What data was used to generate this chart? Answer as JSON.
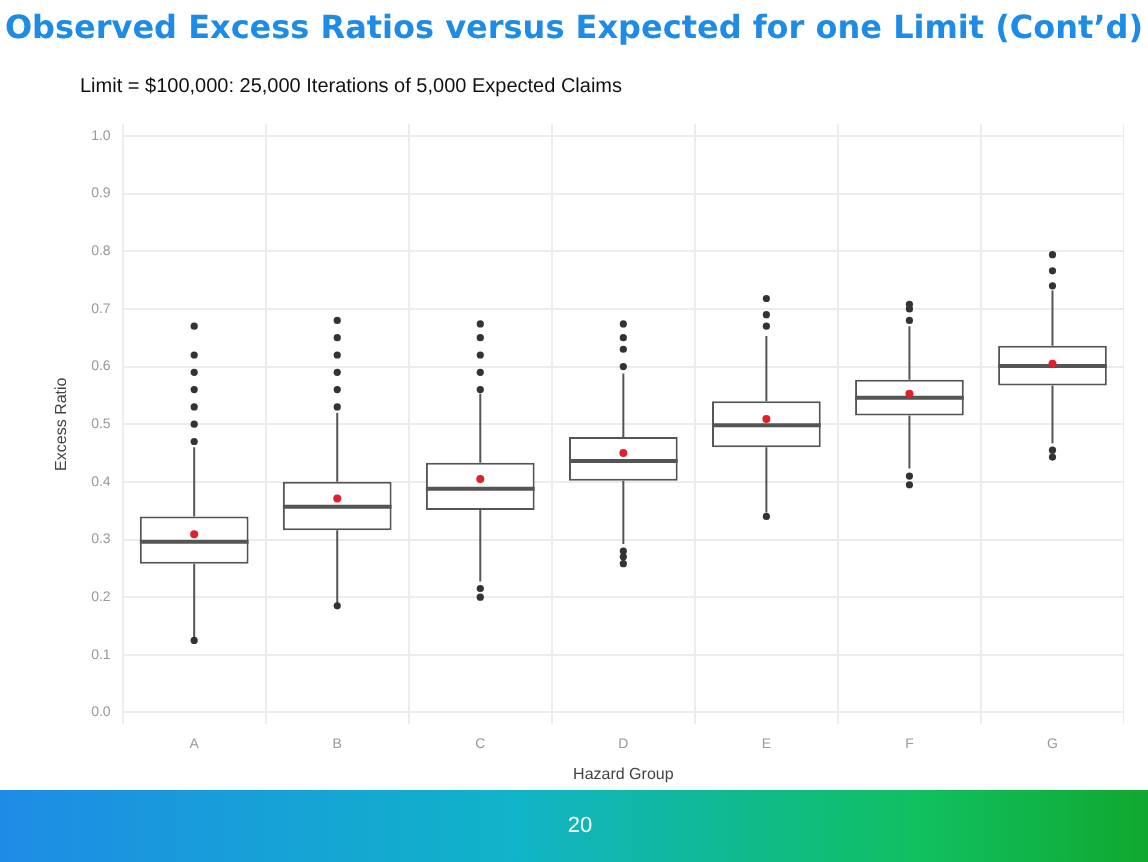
{
  "chart_data": {
    "type": "box",
    "title": "Observed Excess Ratios versus Expected for one Limit (Cont’d)",
    "subtitle": "Limit = $100,000: 25,000 Iterations of 5,000 Expected Claims",
    "xlabel": "Hazard Group",
    "ylabel": "Excess Ratio",
    "categories": [
      "A",
      "B",
      "C",
      "D",
      "E",
      "F",
      "G"
    ],
    "series": [
      {
        "color": "#555555",
        "boxes": [
          {
            "low": 0.13,
            "q1": 0.258,
            "median": 0.296,
            "q3": 0.34,
            "high": 0.46,
            "mean": 0.309,
            "outliers": [
              0.47,
              0.5,
              0.53,
              0.56,
              0.59,
              0.62,
              0.67,
              0.125
            ]
          },
          {
            "low": 0.19,
            "q1": 0.316,
            "median": 0.357,
            "q3": 0.4,
            "high": 0.52,
            "mean": 0.371,
            "outliers": [
              0.53,
              0.56,
              0.59,
              0.62,
              0.65,
              0.68,
              0.185
            ]
          },
          {
            "low": 0.227,
            "q1": 0.351,
            "median": 0.388,
            "q3": 0.433,
            "high": 0.553,
            "mean": 0.405,
            "outliers": [
              0.56,
              0.59,
              0.62,
              0.65,
              0.674,
              0.215,
              0.2
            ]
          },
          {
            "low": 0.292,
            "q1": 0.402,
            "median": 0.436,
            "q3": 0.478,
            "high": 0.588,
            "mean": 0.45,
            "outliers": [
              0.6,
              0.63,
              0.65,
              0.674,
              0.28,
              0.27,
              0.258
            ]
          },
          {
            "low": 0.347,
            "q1": 0.46,
            "median": 0.498,
            "q3": 0.54,
            "high": 0.653,
            "mean": 0.509,
            "outliers": [
              0.67,
              0.69,
              0.718,
              0.34
            ]
          },
          {
            "low": 0.423,
            "q1": 0.515,
            "median": 0.546,
            "q3": 0.577,
            "high": 0.67,
            "mean": 0.553,
            "outliers": [
              0.68,
              0.7,
              0.708,
              0.41,
              0.395
            ]
          },
          {
            "low": 0.467,
            "q1": 0.567,
            "median": 0.601,
            "q3": 0.636,
            "high": 0.732,
            "mean": 0.605,
            "outliers": [
              0.74,
              0.766,
              0.794,
              0.455,
              0.443
            ]
          }
        ]
      }
    ],
    "ylim": [
      -0.02,
      1.02
    ],
    "yticks": [
      {
        "value": 0,
        "label": "0.0"
      },
      {
        "value": 0.1,
        "label": "0.1"
      },
      {
        "value": 0.2,
        "label": "0.2"
      },
      {
        "value": 0.3,
        "label": "0.3"
      },
      {
        "value": 0.4,
        "label": "0.4"
      },
      {
        "value": 0.5,
        "label": "0.5"
      },
      {
        "value": 0.6,
        "label": "0.6"
      },
      {
        "value": 0.7,
        "label": "0.7"
      },
      {
        "value": 0.8,
        "label": "0.8"
      },
      {
        "value": 0.9,
        "label": "0.9"
      },
      {
        "value": 1,
        "label": "1.0"
      }
    ],
    "grid": true,
    "annotations": [
      "20"
    ]
  }
}
